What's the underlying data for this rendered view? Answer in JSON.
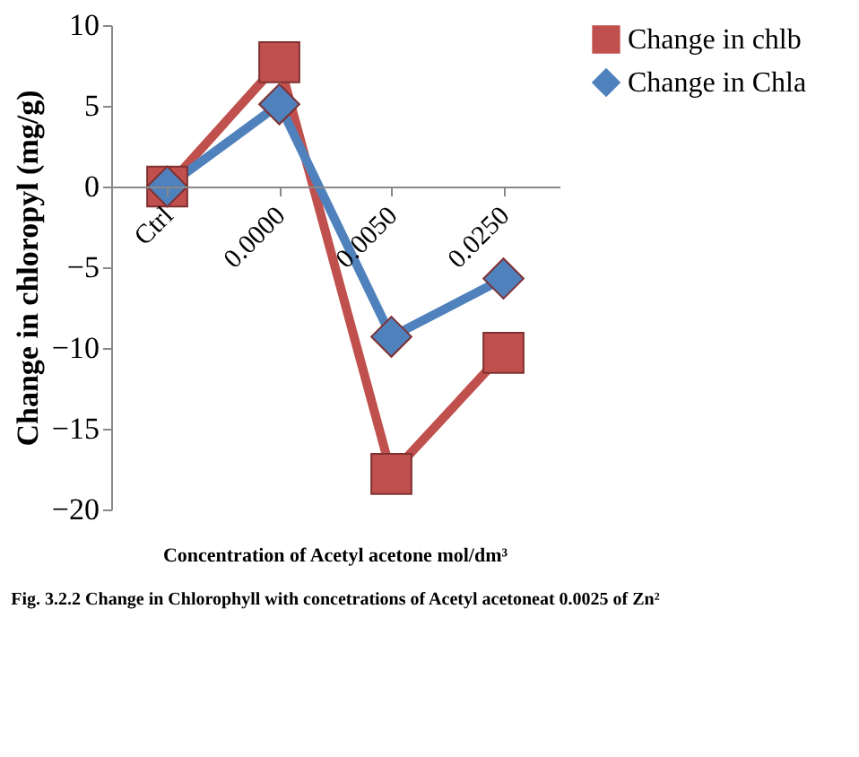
{
  "chart_data": {
    "type": "line",
    "categories": [
      "Ctrl",
      "0.0000",
      "0.0050",
      "0.0250"
    ],
    "series": [
      {
        "name": "Change in chlb",
        "color": "#c0504d",
        "marker": "square",
        "values": [
          0,
          7.7,
          -17.8,
          -10.3
        ]
      },
      {
        "name": "Change in Chla",
        "color": "#4f81bd",
        "marker": "diamond",
        "values": [
          0,
          5.1,
          -9.3,
          -5.7
        ]
      }
    ],
    "ylim": [
      -20,
      10
    ],
    "yticks": [
      -20,
      -15,
      -10,
      -5,
      0,
      5,
      10
    ],
    "ylabel": "Change in chloropyl (mg/g)",
    "xlabel": "Concentration of Acetyl acetone  mol/dm³",
    "annotations": [
      "Fig. 3.2.2 Change in Chlorophyll with concetrations of Acetyl acetoneat 0.0025 of Zn²"
    ],
    "legend": "right",
    "grid": false
  }
}
